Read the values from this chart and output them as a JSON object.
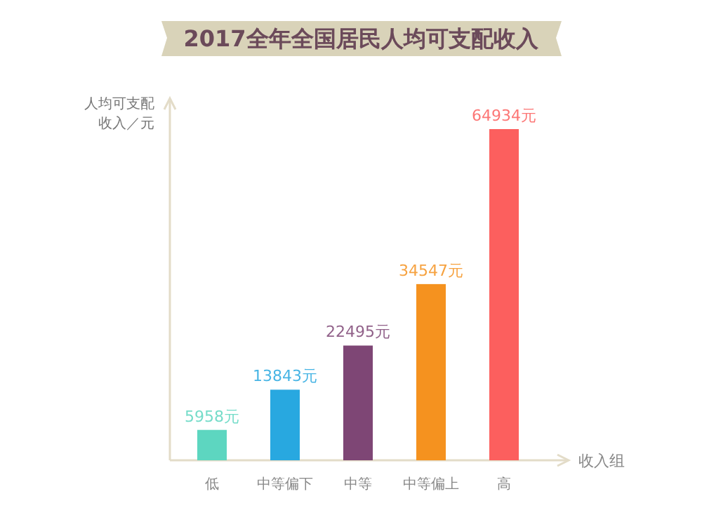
{
  "chart_data": {
    "type": "bar",
    "title": "2017全年全国居民人均可支配收入",
    "xlabel": "收入组",
    "ylabel": "人均可支配收入／元",
    "categories": [
      "低",
      "中等偏下",
      "中等",
      "中等偏上",
      "高"
    ],
    "values": [
      5958,
      13843,
      22495,
      34547,
      64934
    ],
    "value_labels": [
      "5958元",
      "13843元",
      "22495元",
      "34547元",
      "64934元"
    ],
    "colors": [
      "#5dd6c0",
      "#28a8e0",
      "#7e4675",
      "#f5921f",
      "#fc5f5e"
    ]
  }
}
